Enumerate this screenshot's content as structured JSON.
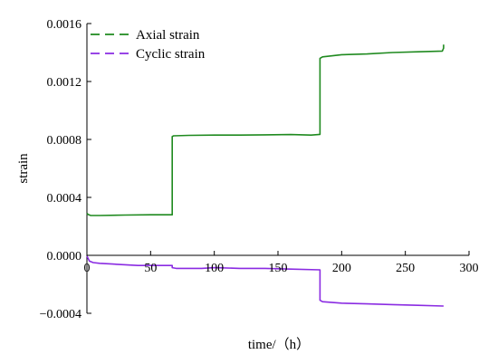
{
  "chart_data": {
    "type": "line",
    "xlabel": "time/（h）",
    "ylabel": "strain",
    "xlim": [
      0,
      300
    ],
    "ylim": [
      -0.0004,
      0.0016
    ],
    "x_ticks": [
      0,
      50,
      100,
      150,
      200,
      250,
      300
    ],
    "x_tick_labels": [
      "0",
      "50",
      "100",
      "150",
      "200",
      "250",
      "300"
    ],
    "y_ticks": [
      -0.0004,
      0.0,
      0.0004,
      0.0008,
      0.0012,
      0.0016
    ],
    "y_tick_labels": [
      "−0.0004",
      "0.0000",
      "0.0004",
      "0.0008",
      "0.0012",
      "0.0016"
    ],
    "grid": false,
    "legend_position": "top-left",
    "series": [
      {
        "name": "Axial strain",
        "color": "#1f8a1f",
        "dash": "dashed",
        "x": [
          0,
          1,
          3,
          10,
          30,
          50,
          67,
          67,
          68,
          80,
          100,
          120,
          140,
          160,
          176,
          183,
          183,
          185,
          200,
          220,
          240,
          260,
          279,
          280,
          280
        ],
        "y": [
          0.00029,
          0.000282,
          0.000275,
          0.000275,
          0.000278,
          0.00028,
          0.00028,
          0.00082,
          0.000825,
          0.000828,
          0.00083,
          0.00083,
          0.000832,
          0.000834,
          0.00083,
          0.000835,
          0.00136,
          0.00137,
          0.001385,
          0.00139,
          0.0014,
          0.001405,
          0.00141,
          0.00143,
          0.001455
        ]
      },
      {
        "name": "Cyclic strain",
        "color": "#8a2be2",
        "dash": "dashed",
        "x": [
          0,
          2,
          5,
          10,
          20,
          40,
          67,
          67,
          70,
          90,
          100,
          120,
          140,
          160,
          183,
          183,
          185,
          200,
          220,
          240,
          260,
          280
        ],
        "y": [
          -5e-06,
          -4e-05,
          -5e-05,
          -5.5e-05,
          -6e-05,
          -7e-05,
          -7e-05,
          -8.5e-05,
          -9e-05,
          -9e-05,
          -8.5e-05,
          -9e-05,
          -9e-05,
          -9.5e-05,
          -0.0001,
          -0.00031,
          -0.00032,
          -0.00033,
          -0.000335,
          -0.00034,
          -0.000345,
          -0.00035
        ]
      }
    ]
  }
}
